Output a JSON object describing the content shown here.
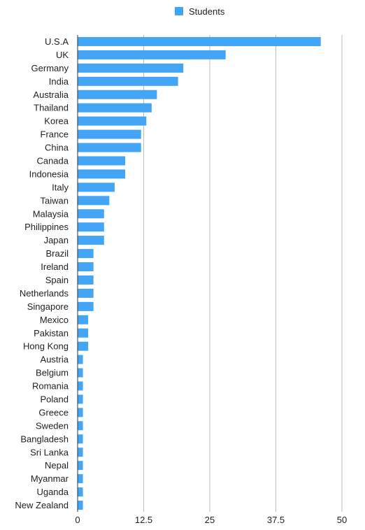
{
  "chart_data": {
    "type": "bar",
    "orientation": "horizontal",
    "legend_position": "top",
    "grid": true,
    "xlim": [
      0,
      50
    ],
    "xticks": [
      "0",
      "12.5",
      "25",
      "37.5",
      "50"
    ],
    "colors": {
      "bar": "#42A5F5",
      "grid": "#bdbdbd",
      "axis": "#333333"
    },
    "categories": [
      "U.S.A",
      "UK",
      "Germany",
      "India",
      "Australia",
      "Thailand",
      "Korea",
      "France",
      "China",
      "Canada",
      "Indonesia",
      "Italy",
      "Taiwan",
      "Malaysia",
      "Philippines",
      "Japan",
      "Brazil",
      "Ireland",
      "Spain",
      "Netherlands",
      "Singapore",
      "Mexico",
      "Pakistan",
      "Hong Kong",
      "Austria",
      "Belgium",
      "Romania",
      "Poland",
      "Greece",
      "Sweden",
      "Bangladesh",
      "Sri Lanka",
      "Nepal",
      "Myanmar",
      "Uganda",
      "New Zealand"
    ],
    "series": [
      {
        "name": "Students",
        "values": [
          46,
          28,
          20,
          19,
          15,
          14,
          13,
          12,
          12,
          9,
          9,
          7,
          6,
          5,
          5,
          5,
          3,
          3,
          3,
          3,
          3,
          2,
          2,
          2,
          1,
          1,
          1,
          1,
          1,
          1,
          1,
          1,
          1,
          1,
          1,
          1
        ]
      }
    ]
  }
}
